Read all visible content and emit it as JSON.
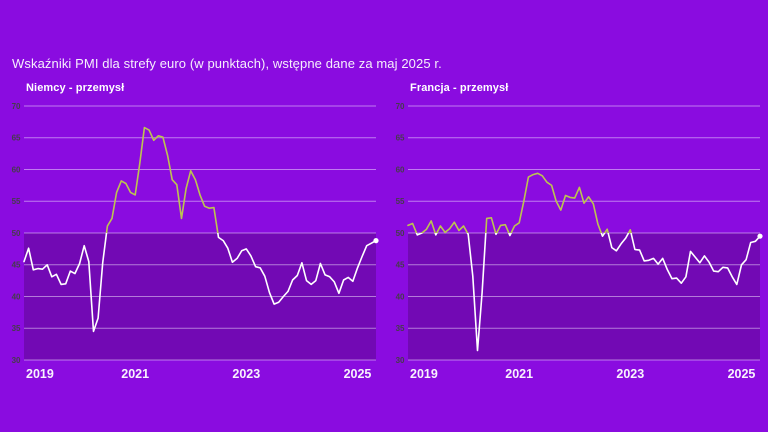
{
  "page": {
    "title": "Wskaźniki PMI dla strefy euro (w punktach), wstępne dane za maj 2025 r.",
    "background": "#8A0CE0"
  },
  "colors": {
    "background": "#8A0CE0",
    "below_threshold_region": "#7209B4",
    "gridline": "rgba(245,235,255,0.5)",
    "line_above_50": "#BCC450",
    "line_below_50": "#FFFFFF",
    "y_tick_text": "#463C4B",
    "x_tick_text": "#F8F2FD",
    "title_text": "#F6EFFC"
  },
  "chart_data": [
    {
      "type": "line",
      "title": "Niemcy - przemysł",
      "unit": "punkty",
      "frequency": "monthly",
      "x_start": "2019-01",
      "x_end": "2025-05",
      "ylim": [
        30,
        70
      ],
      "yticks": [
        70,
        65,
        60,
        55,
        50,
        45,
        40,
        35,
        30
      ],
      "xtick_labels": [
        "2019",
        "2021",
        "2023",
        "2025"
      ],
      "xtick_month_index": [
        0,
        24,
        48,
        72
      ],
      "threshold": 50,
      "grid": "horizontal",
      "end_marker": true,
      "values": [
        45.5,
        47.6,
        44.2,
        44.4,
        44.3,
        45.0,
        43.1,
        43.5,
        41.9,
        42.0,
        44.0,
        43.6,
        45.2,
        48.0,
        45.5,
        34.5,
        36.6,
        45.3,
        51.1,
        52.3,
        56.4,
        58.2,
        57.8,
        56.4,
        56.0,
        61.0,
        66.6,
        66.2,
        64.6,
        65.3,
        65.1,
        62.2,
        58.4,
        57.6,
        52.3,
        57.0,
        59.8,
        58.4,
        56.0,
        54.2,
        53.9,
        54.0,
        49.3,
        48.8,
        47.6,
        45.4,
        46.0,
        47.2,
        47.5,
        46.4,
        44.7,
        44.5,
        43.2,
        40.6,
        38.8,
        39.1,
        40.0,
        40.8,
        42.6,
        43.3,
        45.3,
        42.5,
        41.9,
        42.5,
        45.2,
        43.4,
        43.1,
        42.3,
        40.5,
        42.6,
        43.0,
        42.4,
        44.5,
        46.3,
        48.0,
        48.4,
        48.8
      ]
    },
    {
      "type": "line",
      "title": "Francja - przemysł",
      "unit": "punkty",
      "frequency": "monthly",
      "x_start": "2019-01",
      "x_end": "2025-05",
      "ylim": [
        30,
        70
      ],
      "yticks": [
        70,
        65,
        60,
        55,
        50,
        45,
        40,
        35,
        30
      ],
      "xtick_labels": [
        "2019",
        "2021",
        "2023",
        "2025"
      ],
      "xtick_month_index": [
        0,
        24,
        48,
        72
      ],
      "threshold": 50,
      "grid": "horizontal",
      "end_marker": true,
      "values": [
        51.2,
        51.5,
        49.7,
        50.0,
        50.6,
        51.9,
        49.7,
        51.1,
        50.1,
        50.7,
        51.7,
        50.4,
        51.1,
        49.8,
        43.2,
        31.5,
        40.6,
        52.3,
        52.4,
        49.8,
        51.2,
        51.3,
        49.6,
        51.1,
        51.6,
        55.0,
        58.8,
        59.2,
        59.4,
        59.0,
        58.0,
        57.5,
        55.0,
        53.6,
        55.9,
        55.6,
        55.5,
        57.2,
        54.7,
        55.7,
        54.6,
        51.4,
        49.5,
        50.6,
        47.7,
        47.2,
        48.3,
        49.2,
        50.5,
        47.4,
        47.3,
        45.6,
        45.7,
        46.0,
        45.1,
        46.0,
        44.2,
        42.8,
        42.9,
        42.1,
        43.1,
        47.1,
        46.2,
        45.3,
        46.4,
        45.4,
        44.0,
        43.9,
        44.6,
        44.5,
        43.1,
        41.9,
        45.0,
        45.8,
        48.5,
        48.7,
        49.5
      ]
    }
  ]
}
